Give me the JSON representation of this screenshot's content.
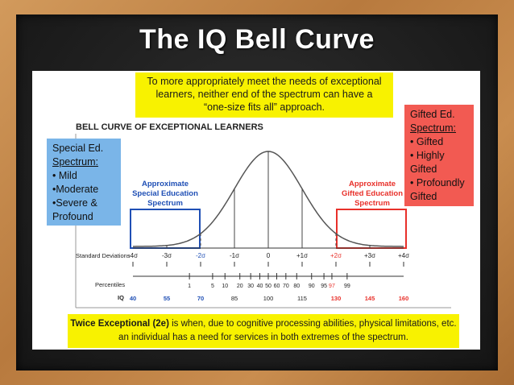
{
  "slide": {
    "title": "The IQ Bell Curve",
    "intro_line1": "To more appropriately meet the needs of exceptional",
    "intro_line2": "learners, neither end of the spectrum can have a",
    "intro_line3": "“one-size fits all” approach.",
    "chart_heading": "BELL CURVE OF EXCEPTIONAL LEARNERS",
    "special_box": {
      "title1": "Special Ed.",
      "title2": "Spectrum:",
      "items": [
        "• Mild",
        "•Moderate",
        "•Severe &",
        "Profound"
      ]
    },
    "gifted_box": {
      "title1": "Gifted Ed.",
      "title2": "Spectrum:",
      "items": [
        "• Gifted",
        "• Highly",
        "Gifted",
        "• Profoundly",
        "Gifted"
      ]
    },
    "special_range": {
      "line1": "Approximate",
      "line2": "Special Education",
      "line3": "Spectrum"
    },
    "gifted_range": {
      "line1": "Approximate",
      "line2": "Gifted Education",
      "line3": "Spectrum"
    },
    "footer_bold": "Twice Exceptional (2e)",
    "footer_rest": " is when, due to cognitive processing abilities, physical limitations, etc.",
    "footer_line2": "an individual has a need for services in both extremes of the spectrum."
  },
  "axes": {
    "sd_label": "Standard Deviations",
    "sd_ticks": [
      "-4σ",
      "-3σ",
      "-2σ",
      "-1σ",
      "0",
      "+1σ",
      "+2σ",
      "+3σ",
      "+4σ"
    ],
    "percentile_label": "Percentiles",
    "percentiles": [
      {
        "v": "1",
        "x": -2.33
      },
      {
        "v": "5",
        "x": -1.645
      },
      {
        "v": "10",
        "x": -1.28
      },
      {
        "v": "20",
        "x": -0.84
      },
      {
        "v": "30",
        "x": -0.52
      },
      {
        "v": "40",
        "x": -0.25
      },
      {
        "v": "50",
        "x": 0
      },
      {
        "v": "60",
        "x": 0.25
      },
      {
        "v": "70",
        "x": 0.52
      },
      {
        "v": "80",
        "x": 0.84
      },
      {
        "v": "90",
        "x": 1.28
      },
      {
        "v": "95",
        "x": 1.645
      },
      {
        "v": "97",
        "x": 1.88
      },
      {
        "v": "99",
        "x": 2.33
      }
    ],
    "iq_label": "IQ",
    "iq_values": [
      "40",
      "55",
      "70",
      "85",
      "100",
      "115",
      "130",
      "145",
      "160"
    ],
    "colors": {
      "blue": "#1f4fb5",
      "red": "#e8302a",
      "curve": "#555555"
    }
  }
}
